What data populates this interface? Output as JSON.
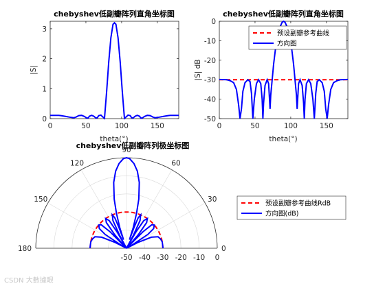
{
  "watermark": "CSDN 大數據眼",
  "chart_data": [
    {
      "type": "line",
      "title": "chebyshev低副瓣阵列直角坐标图",
      "xlabel": "theta(°)",
      "ylabel": "|S|",
      "xlim": [
        0,
        180
      ],
      "ylim": [
        0,
        3.25
      ],
      "xticks": [
        "0",
        "50",
        "100",
        "150"
      ],
      "yticks": [
        "0",
        "1",
        "2",
        "3"
      ],
      "series": [
        {
          "color": "#0000ff",
          "points": [
            [
              0,
              0.11
            ],
            [
              5,
              0.11
            ],
            [
              10,
              0.11
            ],
            [
              12,
              0.11
            ],
            [
              15,
              0.1
            ],
            [
              18,
              0.09
            ],
            [
              22,
              0.07
            ],
            [
              27,
              0.05
            ],
            [
              30,
              0.04
            ],
            [
              33,
              0.03
            ],
            [
              36,
              0.05
            ],
            [
              40,
              0.1
            ],
            [
              44,
              0.11
            ],
            [
              48,
              0.07
            ],
            [
              51,
              0.02
            ],
            [
              53,
              0.02
            ],
            [
              55,
              0.08
            ],
            [
              58,
              0.11
            ],
            [
              61,
              0.08
            ],
            [
              64,
              0.02
            ],
            [
              66,
              0.03
            ],
            [
              68,
              0.1
            ],
            [
              71,
              0.12
            ],
            [
              73,
              0.07
            ],
            [
              76,
              0.01
            ],
            [
              79,
              0.9
            ],
            [
              82,
              1.9
            ],
            [
              85,
              2.7
            ],
            [
              88,
              3.15
            ],
            [
              90,
              3.2
            ],
            [
              92,
              3.15
            ],
            [
              95,
              2.7
            ],
            [
              98,
              1.9
            ],
            [
              101,
              0.9
            ],
            [
              104,
              0.01
            ],
            [
              107,
              0.07
            ],
            [
              109,
              0.12
            ],
            [
              112,
              0.1
            ],
            [
              114,
              0.03
            ],
            [
              116,
              0.02
            ],
            [
              119,
              0.08
            ],
            [
              122,
              0.11
            ],
            [
              125,
              0.08
            ],
            [
              127,
              0.02
            ],
            [
              129,
              0.02
            ],
            [
              132,
              0.07
            ],
            [
              136,
              0.11
            ],
            [
              140,
              0.1
            ],
            [
              144,
              0.05
            ],
            [
              147,
              0.03
            ],
            [
              150,
              0.04
            ],
            [
              153,
              0.05
            ],
            [
              158,
              0.07
            ],
            [
              162,
              0.09
            ],
            [
              165,
              0.1
            ],
            [
              168,
              0.11
            ],
            [
              175,
              0.11
            ],
            [
              180,
              0.11
            ]
          ]
        }
      ]
    },
    {
      "type": "line",
      "title": "chebyshev低副瓣阵列直角坐标图",
      "xlabel": "theta(°)",
      "ylabel": "|S| dB",
      "xlim": [
        0,
        180
      ],
      "ylim": [
        -50,
        0
      ],
      "xticks": [
        "0",
        "50",
        "100",
        "150"
      ],
      "yticks": [
        "0",
        "-10",
        "-20",
        "-30",
        "-40",
        "-50"
      ],
      "legend": {
        "position": "top-right",
        "entries": [
          "预设副瓣参考曲线",
          "方向图"
        ]
      },
      "series": [
        {
          "name": "预设副瓣参考曲线",
          "style": "dashed",
          "color": "#ff0000",
          "points": [
            [
              0,
              -30
            ],
            [
              180,
              -30
            ]
          ]
        },
        {
          "name": "方向图",
          "color": "#0000ff",
          "points": [
            [
              0,
              -29.9
            ],
            [
              10,
              -30
            ],
            [
              15,
              -30.5
            ],
            [
              20,
              -31.5
            ],
            [
              24,
              -35
            ],
            [
              27,
              -43
            ],
            [
              29,
              -50
            ],
            [
              31,
              -45
            ],
            [
              33,
              -36
            ],
            [
              36,
              -31.5
            ],
            [
              40,
              -30
            ],
            [
              43,
              -31
            ],
            [
              45,
              -37
            ],
            [
              47,
              -50
            ],
            [
              49,
              -40
            ],
            [
              52,
              -32
            ],
            [
              55,
              -30
            ],
            [
              58,
              -32
            ],
            [
              60,
              -40
            ],
            [
              61,
              -50
            ],
            [
              62,
              -42
            ],
            [
              64,
              -33
            ],
            [
              67,
              -30
            ],
            [
              69,
              -32
            ],
            [
              70,
              -38
            ],
            [
              71,
              -45
            ],
            [
              72,
              -38
            ],
            [
              74,
              -30
            ],
            [
              76,
              -22
            ],
            [
              79,
              -13
            ],
            [
              82,
              -7
            ],
            [
              85,
              -3
            ],
            [
              88,
              -0.5
            ],
            [
              90,
              0
            ],
            [
              92,
              -0.5
            ],
            [
              95,
              -3
            ],
            [
              98,
              -7
            ],
            [
              101,
              -13
            ],
            [
              104,
              -22
            ],
            [
              106,
              -30
            ],
            [
              108,
              -38
            ],
            [
              109,
              -45
            ],
            [
              110,
              -38
            ],
            [
              111,
              -32
            ],
            [
              113,
              -30
            ],
            [
              116,
              -33
            ],
            [
              118,
              -42
            ],
            [
              119,
              -50
            ],
            [
              120,
              -40
            ],
            [
              122,
              -32
            ],
            [
              125,
              -30
            ],
            [
              128,
              -32
            ],
            [
              131,
              -40
            ],
            [
              133,
              -50
            ],
            [
              135,
              -37
            ],
            [
              137,
              -31
            ],
            [
              140,
              -30
            ],
            [
              144,
              -31.5
            ],
            [
              147,
              -36
            ],
            [
              149,
              -45
            ],
            [
              151,
              -50
            ],
            [
              153,
              -43
            ],
            [
              156,
              -35
            ],
            [
              160,
              -31.5
            ],
            [
              165,
              -30.5
            ],
            [
              170,
              -30
            ],
            [
              180,
              -29.9
            ]
          ]
        }
      ]
    },
    {
      "type": "polar",
      "title": "chebyshev低副瓣阵列极坐标图",
      "rlim": [
        -50,
        0
      ],
      "rticks": [
        "-50",
        "-40",
        "-30",
        "-20",
        "-10",
        "0"
      ],
      "angle_ticks": [
        "0",
        "30",
        "60",
        "90",
        "120",
        "150",
        "180"
      ],
      "legend": {
        "position": "right",
        "entries": [
          "预设副瓣参考曲线RdB",
          "方向图(dB)"
        ]
      },
      "series": [
        {
          "name": "预设副瓣参考曲线RdB",
          "style": "dashed",
          "color": "#ff0000",
          "constant_r": -30
        },
        {
          "name": "方向图(dB)",
          "color": "#0000ff",
          "ref": "series-1-of-chart-2"
        }
      ]
    }
  ]
}
